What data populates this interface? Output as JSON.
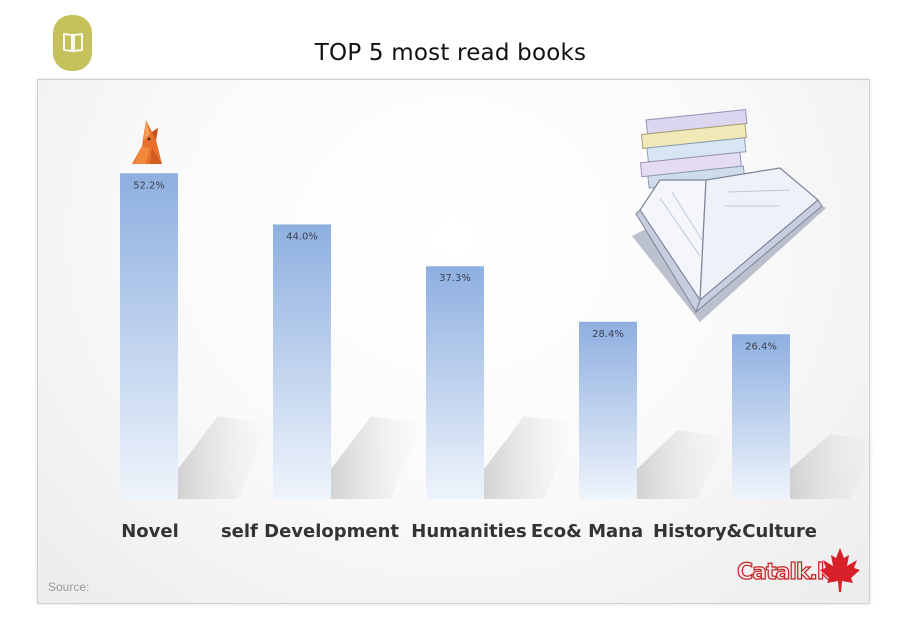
{
  "header": {
    "badge_icon": "open-book-icon",
    "badge_color": "#c5c25c"
  },
  "chart_data": {
    "type": "bar",
    "title": "TOP 5 most read books",
    "categories": [
      "Novel",
      "self Development",
      "Humanities",
      "Eco& Mana",
      "History&Culture"
    ],
    "values": [
      52.2,
      44.0,
      37.3,
      28.4,
      26.4
    ],
    "value_labels": [
      "52.2%",
      "44.0%",
      "37.3%",
      "28.4%",
      "26.4%"
    ],
    "unit": "%",
    "ylim": [
      0,
      60
    ],
    "grid": false,
    "legend": "none",
    "bar_color_top": "#8fb0e0",
    "bar_color_bottom": "#eef3fb"
  },
  "footer": {
    "source_label": "Source:",
    "logo_text": "Catalk.kr",
    "logo_icon": "maple-leaf-icon"
  },
  "decorations": {
    "mascot": "fox-icon",
    "illustration": "book-stack-icon"
  }
}
